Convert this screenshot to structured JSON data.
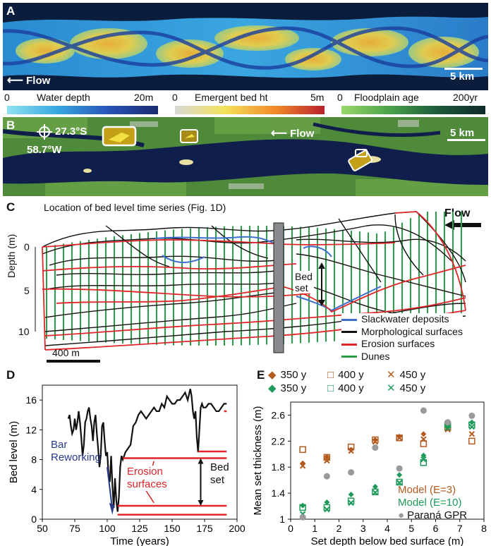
{
  "panels": {
    "a": {
      "label": "A",
      "flow": "Flow",
      "scale": "5 km",
      "colorbars": [
        {
          "min": "0",
          "name": "Water depth",
          "max": "20m",
          "colors": [
            "#8fe3f0",
            "#38a7e0",
            "#2855b8",
            "#1a2a6e"
          ]
        },
        {
          "min": "0",
          "name": "Emergent bed ht",
          "max": "5m",
          "colors": [
            "#d8d8d8",
            "#f2e25a",
            "#f28a2a",
            "#b8202a"
          ]
        },
        {
          "min": "0",
          "name": "Floodplain age",
          "max": "200yr",
          "colors": [
            "#9ad86a",
            "#4aa24a",
            "#1c5a3a",
            "#0f2a2a"
          ]
        }
      ]
    },
    "b": {
      "label": "B",
      "lat": "27.3°S",
      "lon": "58.7°W",
      "flow": "Flow",
      "scale": "5 km"
    },
    "c": {
      "label": "C",
      "location_note": "Location of bed level time series (Fig. 1D)",
      "flow": "Flow",
      "ylabel": "Depth (m)",
      "yticks": [
        "0",
        "5",
        "10"
      ],
      "scale": "400 m",
      "bedset": [
        "Bed",
        "set"
      ],
      "legend": [
        {
          "label": "Slackwater deposits",
          "color": "#3d6fd0"
        },
        {
          "label": "Morphological surfaces",
          "color": "#111111"
        },
        {
          "label": "Erosion surfaces",
          "color": "#e0262a"
        },
        {
          "label": "Dunes",
          "color": "#2aa048"
        }
      ]
    },
    "d": {
      "label": "D",
      "bar_reworking": [
        "Bar",
        "Reworking"
      ],
      "erosion": [
        "Erosion",
        "surfaces"
      ],
      "bedset": [
        "Bed",
        "set"
      ]
    },
    "e": {
      "label": "E",
      "legend_rows": [
        {
          "color": "#b35a1f",
          "items": [
            "350 y",
            "400 y",
            "450 y"
          ]
        },
        {
          "color": "#1e9a5a",
          "items": [
            "350 y",
            "400 y",
            "450 y"
          ]
        }
      ],
      "model_legend": [
        {
          "label": "Model (E=3)",
          "color": "#b35a1f"
        },
        {
          "label": "Model (E=10)",
          "color": "#1e9a5a"
        },
        {
          "label": "Paraná GPR",
          "color": "#111111"
        }
      ]
    }
  },
  "chart_data": [
    {
      "panel": "D",
      "type": "line",
      "xlabel": "Time (years)",
      "ylabel": "Bed level (m)",
      "xlim": [
        50,
        200
      ],
      "ylim": [
        0,
        18
      ],
      "xticks": [
        50,
        75,
        100,
        125,
        150,
        175,
        200
      ],
      "yticks": [
        0,
        4,
        8,
        12,
        16
      ],
      "series": [
        {
          "color": "#111111",
          "x": [
            70,
            71,
            72,
            73,
            74,
            75,
            76,
            77,
            78,
            79,
            80,
            81,
            82,
            83,
            84,
            85,
            86,
            87,
            88,
            89,
            90,
            91,
            92,
            93,
            94,
            95,
            96,
            97,
            98,
            99,
            100,
            101,
            102,
            103,
            104,
            105,
            106,
            107,
            108,
            109,
            110,
            111,
            112,
            114,
            116,
            118,
            120,
            122,
            124,
            126,
            128,
            130,
            132,
            134,
            136,
            138,
            140,
            142,
            144,
            146,
            148,
            150,
            152,
            154,
            156,
            158,
            160,
            162,
            164,
            165,
            166,
            167,
            168,
            169,
            170,
            171,
            172,
            173,
            174,
            176,
            178,
            180,
            182,
            184,
            186,
            188,
            190,
            192
          ],
          "y": [
            13.5,
            14,
            12.5,
            11.5,
            12,
            13.5,
            12,
            13,
            14.5,
            13,
            11,
            8.5,
            10,
            13,
            13.5,
            14.5,
            15,
            13.5,
            12.5,
            10.5,
            13,
            14,
            11.5,
            9.5,
            7,
            8.5,
            12.5,
            13,
            10.5,
            8.5,
            9,
            6,
            5,
            8.5,
            4.5,
            1.5,
            5.5,
            2.5,
            1,
            3,
            7,
            8.5,
            8,
            9,
            9.5,
            10,
            12.5,
            13,
            14,
            14.5,
            14,
            13.5,
            14,
            14.5,
            15,
            14.5,
            14.5,
            15.5,
            15,
            16.5,
            16,
            15.5,
            15.5,
            16,
            16,
            16.5,
            17,
            16,
            17.5,
            16.5,
            14.5,
            13.5,
            14.5,
            11,
            9,
            12,
            15,
            15.5,
            15,
            15,
            15.5,
            15.5,
            15,
            14.5,
            14.5,
            15,
            15.5,
            15.5
          ]
        },
        {
          "color": "#e0262a",
          "x": [
            108,
            192
          ],
          "y": [
            0.6,
            0.6
          ]
        },
        {
          "color": "#e0262a",
          "x": [
            108,
            192
          ],
          "y": [
            1.8,
            1.8
          ]
        },
        {
          "color": "#e0262a",
          "x": [
            112,
            192
          ],
          "y": [
            8.2,
            8.2
          ]
        },
        {
          "color": "#e0262a",
          "x": [
            170,
            192
          ],
          "y": [
            9.1,
            9.1
          ]
        },
        {
          "color": "#e0262a",
          "x": [
            190,
            192
          ],
          "y": [
            14.5,
            14.5
          ]
        }
      ]
    },
    {
      "panel": "E",
      "type": "scatter",
      "xlabel": "Set depth below bed surface (m)",
      "ylabel": "Mean set thickness (m)",
      "xlim": [
        0,
        8
      ],
      "ylim": [
        1,
        2.8
      ],
      "xticks": [
        0,
        1,
        2,
        3,
        4,
        5,
        6,
        7,
        8
      ],
      "yticks": [
        1,
        1.4,
        1.8,
        2.2,
        2.6
      ],
      "series": [
        {
          "name": "350 y",
          "group": "Model (E=3)",
          "marker": "diamond",
          "color": "#b35a1f",
          "x": [
            0.5,
            1.5,
            2.5,
            3.5,
            4.5,
            5.5,
            6.5,
            7.5
          ],
          "y": [
            1.86,
            1.96,
            2.07,
            2.22,
            2.27,
            2.31,
            2.42,
            2.59
          ]
        },
        {
          "name": "400 y",
          "group": "Model (E=3)",
          "marker": "square",
          "color": "#b35a1f",
          "x": [
            0.5,
            1.5,
            2.5,
            3.5,
            4.5,
            5.5,
            6.5,
            7.5
          ],
          "y": [
            2.07,
            1.95,
            2.11,
            2.22,
            2.25,
            2.16,
            2.41,
            2.2
          ]
        },
        {
          "name": "450 y",
          "group": "Model (E=3)",
          "marker": "x",
          "color": "#b35a1f",
          "x": [
            0.5,
            1.5,
            2.5,
            3.5,
            4.5,
            5.5,
            6.5,
            7.5
          ],
          "y": [
            1.82,
            1.9,
            2.05,
            2.19,
            2.25,
            2.23,
            2.38,
            2.31
          ]
        },
        {
          "name": "350 y",
          "group": "Model (E=10)",
          "marker": "diamond",
          "color": "#1e9a5a",
          "x": [
            0.5,
            1.5,
            2.5,
            3.5,
            4.5,
            5.5,
            6.5,
            7.5
          ],
          "y": [
            1.21,
            1.26,
            1.38,
            1.5,
            1.68,
            1.98,
            2.45,
            2.49
          ]
        },
        {
          "name": "400 y",
          "group": "Model (E=10)",
          "marker": "square",
          "color": "#1e9a5a",
          "x": [
            0.5,
            1.5,
            2.5,
            3.5,
            4.5,
            5.5,
            6.5,
            7.5
          ],
          "y": [
            1.18,
            1.18,
            1.28,
            1.42,
            1.57,
            1.87,
            2.45,
            2.45
          ]
        },
        {
          "name": "450 y",
          "group": "Model (E=10)",
          "marker": "x",
          "color": "#1e9a5a",
          "x": [
            0.5,
            1.5,
            2.5,
            3.5,
            4.5,
            5.5,
            6.5,
            7.5
          ],
          "y": [
            1.08,
            1.15,
            1.25,
            1.41,
            1.56,
            1.92,
            2.4,
            2.42
          ]
        },
        {
          "name": "Paraná GPR",
          "group": "Paraná GPR",
          "marker": "circle",
          "color": "#9a9a9a",
          "x": [
            0.5,
            1.5,
            2.5,
            3.5,
            4.5,
            5.5,
            6.5,
            7.5
          ],
          "y": [
            1.03,
            1.66,
            1.72,
            2.1,
            1.78,
            2.67,
            2.49,
            2.59
          ]
        }
      ]
    }
  ]
}
